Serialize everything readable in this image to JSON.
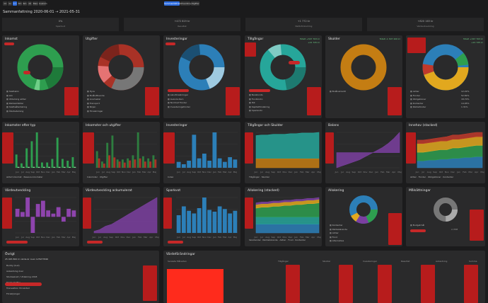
{
  "nav": {
    "buttons": [
      "1d",
      "1v",
      "1m",
      "3m",
      "6m",
      "1å",
      "Max",
      "Custom"
    ],
    "tabs": [
      "Sammanfattning",
      "Utveckling",
      "Utgifter"
    ]
  },
  "header": {
    "title": "Sammanfattning 2020-06-01 → 2021-05-31"
  },
  "stats": [
    {
      "value": "0%",
      "label": "Sparkvot"
    },
    {
      "value": "+472 819 kr",
      "label": "Resultat"
    },
    {
      "value": "+1 772 kr",
      "label": "Nettoförändring"
    },
    {
      "value": "+820 163 kr",
      "label": "Värdeutveckling"
    }
  ],
  "cards": {
    "inkomst": {
      "title": "Inkomst",
      "legend": [
        "Skattelön",
        "Lön",
        "Utdelning aktier",
        "Ränteintäkter",
        "Skatteåterbäring",
        "Återbetalning"
      ]
    },
    "utgifter": {
      "title": "Utgifter",
      "legend": [
        "Hyra",
        "Bolån/Boende",
        "Livsmedel",
        "Transport",
        "Nöjen",
        "Försäkringar"
      ]
    },
    "investeringar": {
      "title": "Investeringar",
      "legend": [
        "Index",
        "Länsförsäkringar",
        "Avanza Zero",
        "Nordnet Fonder",
        "Investeringsfonder"
      ]
    },
    "tillgangar": {
      "title": "Tillgångar",
      "legend": [
        "Bankkonto",
        "Fondkonto",
        "ISK",
        "Kapitalförsäkring",
        "Sparkonto"
      ],
      "badge1": "Totalt +347 703 kr",
      "badge2": "+21 725 kr"
    },
    "skulder": {
      "title": "Skulder",
      "legend": [
        "Bolånekredit"
      ],
      "badge": "Totalt -1 307 420 kr"
    },
    "tillgangar2": {
      "legend": [
        "Aktier",
        "Fonder",
        "Obligationer",
        "Kontanter",
        "Räntefonder"
      ],
      "pcts": [
        "12.22%",
        "52.82%",
        "18.70%",
        "14.95%",
        "1.31%"
      ],
      "badge1": "Totalt +347 703 kr",
      "badge2": "+21 725 kr"
    },
    "inkomster_typ": {
      "title": "Inkomster efter typ",
      "legend": [
        "Aktivt inkomst",
        "Passiva inkomster"
      ]
    },
    "inkomster_utgifter": {
      "title": "Inkomster och utgifter",
      "legend": [
        "Inkomster",
        "Utgifter"
      ]
    },
    "investeringar2": {
      "title": "Investeringar",
      "legend": [
        "Index"
      ]
    },
    "tillgangar_skulder": {
      "title": "Tillgångar och Skulder",
      "legend": [
        "Tillgångar",
        "Skulder"
      ]
    },
    "balans": {
      "title": "Balans"
    },
    "innehav": {
      "title": "Innehav (stacked)",
      "legend": [
        "Aktier",
        "Fonder",
        "Obligationer",
        "Kontanter"
      ]
    },
    "vardeutveckling": {
      "title": "Värdeutveckling"
    },
    "vardeutveckling_ack": {
      "title": "Värdeutveckling ackumulerat"
    },
    "sparkvot": {
      "title": "Sparkvot"
    },
    "allokering_stacked": {
      "title": "Allokering (stacked)",
      "legend": [
        "Skuldandel",
        "Räntebärande",
        "Aktier",
        "Fond",
        "Kontanter"
      ]
    },
    "allokering": {
      "title": "Allokering",
      "legend": [
        "Kontanter",
        "Räntebärande",
        "Aktier",
        "Fond",
        "Alternativa"
      ]
    },
    "malsattningar": {
      "title": "Målsättningar",
      "legend": [
        "Budgetmål",
        "Sparmål"
      ],
      "value": "2,35M"
    },
    "ovrigt": {
      "title": "Övrigt",
      "subtitle": "25 465 800 kr värde är ovan 125977846",
      "rows": [
        "Buddy (bud)",
        "Avkastning över",
        "Studieskuld / Utdelning 2018",
        "Ränteutgifter",
        "Transaktion förväntad",
        "Försäljningar"
      ]
    },
    "vardeforandringar": {
      "title": "Värdeförändringar",
      "cols": [
        "Tillgångar",
        "Skulder",
        "Investeringar",
        "Resultat",
        "Avkastning",
        "Summa"
      ],
      "sub": "Senaste Månaden"
    }
  },
  "chart_data": [
    {
      "type": "bar",
      "title": "Inkomster efter typ",
      "categories": [
        "Jun",
        "Jul",
        "Aug",
        "Sep",
        "Okt",
        "Nov",
        "Dec",
        "Jan",
        "Feb",
        "Mar",
        "Apr",
        "Maj"
      ],
      "series": [
        {
          "name": "Aktivt inkomst",
          "values": [
            15,
            5,
            22,
            30,
            40,
            6,
            6,
            10,
            34,
            10,
            8,
            12
          ]
        },
        {
          "name": "Passiva inkomster",
          "values": [
            1,
            1,
            1,
            1,
            1,
            1,
            1,
            1,
            1,
            1,
            1,
            1
          ]
        }
      ]
    },
    {
      "type": "bar",
      "title": "Inkomster och utgifter",
      "categories": [
        "Jun",
        "Jul",
        "Aug",
        "Sep",
        "Okt",
        "Nov",
        "Dec",
        "Jan",
        "Feb",
        "Mar",
        "Apr",
        "Maj"
      ],
      "series": [
        {
          "name": "Inkomster",
          "values": [
            16,
            6,
            24,
            31,
            8,
            8,
            9,
            12,
            34,
            11,
            9,
            12
          ]
        },
        {
          "name": "Utgifter",
          "values": [
            9,
            4,
            12,
            10,
            6,
            5,
            7,
            8,
            9,
            6,
            6,
            8
          ]
        }
      ]
    },
    {
      "type": "bar",
      "title": "Investeringar",
      "categories": [
        "Jun",
        "Jul",
        "Aug",
        "Sep",
        "Okt",
        "Nov",
        "Dec",
        "Jan",
        "Feb",
        "Mar",
        "Apr",
        "Maj"
      ],
      "series": [
        {
          "name": "Index",
          "values": [
            5,
            3,
            6,
            28,
            8,
            12,
            6,
            30,
            8,
            5,
            9,
            7
          ]
        }
      ]
    },
    {
      "type": "area",
      "title": "Tillgångar och Skulder",
      "categories": [
        "Jun",
        "Jul",
        "Aug",
        "Sep",
        "Okt",
        "Nov",
        "Dec",
        "Jan",
        "Feb",
        "Mar",
        "Apr",
        "Maj"
      ],
      "series": [
        {
          "name": "Tillgångar",
          "values": [
            36,
            37,
            37,
            38,
            38,
            38,
            39,
            39,
            40,
            40,
            40,
            41
          ]
        },
        {
          "name": "Skulder",
          "values": [
            -14,
            -14,
            -14,
            -14,
            -14,
            -14,
            -14,
            -14,
            -14,
            -14,
            -14,
            -14
          ]
        }
      ]
    },
    {
      "type": "area",
      "title": "Balans",
      "categories": [
        "Jun",
        "Jul",
        "Aug",
        "Sep",
        "Okt",
        "Nov",
        "Dec",
        "Jan",
        "Feb",
        "Mar",
        "Apr",
        "Maj"
      ],
      "series": [
        {
          "values": [
            -30,
            -26,
            -22,
            -18,
            -14,
            -8,
            -2,
            4,
            10,
            18,
            28,
            40
          ]
        }
      ]
    },
    {
      "type": "area",
      "title": "Innehav (stacked)",
      "categories": [
        "Jun",
        "Jul",
        "Aug",
        "Sep",
        "Okt",
        "Nov",
        "Dec",
        "Jan",
        "Feb",
        "Mar",
        "Apr",
        "Maj"
      ],
      "series": [
        {
          "name": "Aktier",
          "values": [
            8,
            8,
            9,
            9,
            10,
            10,
            11,
            11,
            12,
            12,
            13,
            13
          ]
        },
        {
          "name": "Fonder",
          "values": [
            10,
            10,
            10,
            11,
            11,
            11,
            12,
            12,
            12,
            13,
            13,
            13
          ]
        },
        {
          "name": "Obligationer",
          "values": [
            10,
            10,
            10,
            10,
            10,
            10,
            10,
            10,
            10,
            10,
            10,
            10
          ]
        },
        {
          "name": "Kontanter",
          "values": [
            4,
            4,
            4,
            4,
            4,
            5,
            5,
            5,
            5,
            5,
            5,
            5
          ]
        }
      ]
    },
    {
      "type": "bar",
      "title": "Värdeutveckling",
      "categories": [
        "Jun",
        "Jul",
        "Aug",
        "Sep",
        "Okt",
        "Nov",
        "Dec",
        "Jan",
        "Feb",
        "Mar",
        "Apr",
        "Maj"
      ],
      "series": [
        {
          "values": [
            5,
            3,
            12,
            -10,
            8,
            10,
            4,
            2,
            6,
            -3,
            5,
            4
          ]
        }
      ]
    },
    {
      "type": "area",
      "title": "Värdeutveckling ackumulerat",
      "categories": [
        "Jun",
        "Jul",
        "Aug",
        "Sep",
        "Okt",
        "Nov",
        "Dec",
        "Jan",
        "Feb",
        "Mar",
        "Apr",
        "Maj"
      ],
      "series": [
        {
          "values": [
            2,
            4,
            8,
            10,
            14,
            18,
            22,
            26,
            30,
            34,
            38,
            42
          ]
        }
      ]
    },
    {
      "type": "bar",
      "title": "Sparkvot",
      "categories": [
        "Jun",
        "Jul",
        "Aug",
        "Sep",
        "Okt",
        "Nov",
        "Dec",
        "Jan",
        "Feb",
        "Mar",
        "Apr",
        "Maj"
      ],
      "series": [
        {
          "values": [
            20,
            30,
            25,
            22,
            28,
            40,
            26,
            24,
            30,
            27,
            22,
            25
          ]
        }
      ]
    },
    {
      "type": "area",
      "title": "Allokering (stacked)",
      "categories": [
        "Jun",
        "Jul",
        "Aug",
        "Sep",
        "Okt",
        "Nov",
        "Dec",
        "Jan",
        "Feb",
        "Mar",
        "Apr",
        "Maj"
      ],
      "series": [
        {
          "name": "Skuldandel",
          "values": [
            10,
            10,
            10,
            10,
            10,
            10,
            10,
            10,
            10,
            10,
            10,
            10
          ]
        },
        {
          "name": "Räntebärande",
          "values": [
            8,
            8,
            8,
            8,
            8,
            8,
            8,
            8,
            8,
            8,
            8,
            8
          ]
        },
        {
          "name": "Aktier",
          "values": [
            10,
            11,
            11,
            12,
            12,
            13,
            13,
            14,
            14,
            15,
            15,
            16
          ]
        },
        {
          "name": "Fond",
          "values": [
            4,
            4,
            4,
            4,
            4,
            4,
            4,
            4,
            4,
            4,
            4,
            4
          ]
        },
        {
          "name": "Kontanter",
          "values": [
            2,
            2,
            2,
            2,
            2,
            2,
            2,
            2,
            2,
            2,
            2,
            2
          ]
        }
      ]
    }
  ],
  "colors": {
    "green": "#2e9e4f",
    "red": "#c0392b",
    "blue": "#2c7fb8",
    "teal": "#26a69a",
    "orange": "#c47d13",
    "purple": "#7b3fa0",
    "redact": "#b71c1c"
  }
}
